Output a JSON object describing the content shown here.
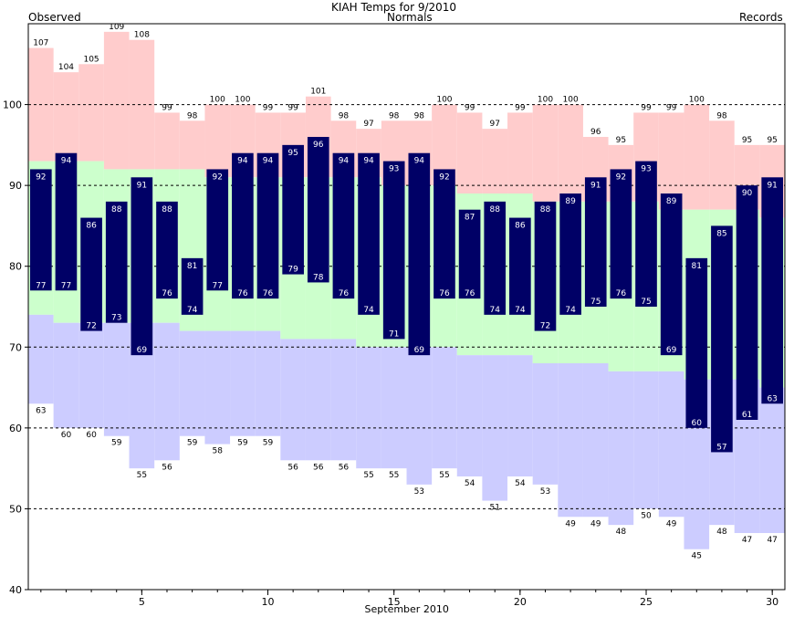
{
  "chart_data": {
    "type": "bar",
    "title": "KIAH Temps for 9/2010",
    "xlabel": "September 2010",
    "ylabel": "",
    "legend": {
      "observed": "Observed",
      "normals": "Normals",
      "records": "Records"
    },
    "ylim": [
      40,
      110
    ],
    "xlim": [
      0.5,
      30.5
    ],
    "yticks": [
      40,
      50,
      60,
      70,
      80,
      90,
      100
    ],
    "xticks": [
      5,
      10,
      15,
      20,
      25,
      30
    ],
    "grid": "horizontal dashed at 50, 60, 70, 80, 90, 100",
    "x": [
      1,
      2,
      3,
      4,
      5,
      6,
      7,
      8,
      9,
      10,
      11,
      12,
      13,
      14,
      15,
      16,
      17,
      18,
      19,
      20,
      21,
      22,
      23,
      24,
      25,
      26,
      27,
      28,
      29,
      30
    ],
    "series": [
      {
        "name": "Observed",
        "kind": "high",
        "values": [
          92,
          94,
          86,
          88,
          91,
          88,
          81,
          92,
          94,
          94,
          95,
          96,
          94,
          94,
          93,
          94,
          92,
          87,
          88,
          86,
          88,
          89,
          91,
          92,
          93,
          89,
          81,
          85,
          90,
          91
        ]
      },
      {
        "name": "Observed",
        "kind": "low",
        "values": [
          77,
          77,
          72,
          73,
          69,
          76,
          74,
          77,
          76,
          76,
          79,
          78,
          76,
          74,
          71,
          69,
          76,
          76,
          74,
          74,
          72,
          74,
          75,
          76,
          75,
          69,
          60,
          57,
          61,
          63
        ]
      },
      {
        "name": "Normals",
        "kind": "high",
        "values": [
          93,
          93,
          93,
          92,
          92,
          92,
          92,
          91,
          91,
          91,
          91,
          91,
          91,
          91,
          90,
          90,
          90,
          89,
          89,
          89,
          88,
          88,
          88,
          88,
          88,
          87,
          87,
          87,
          87,
          86
        ]
      },
      {
        "name": "Normals",
        "kind": "low",
        "values": [
          74,
          73,
          73,
          73,
          73,
          73,
          72,
          72,
          72,
          72,
          71,
          71,
          71,
          70,
          70,
          70,
          70,
          69,
          69,
          69,
          68,
          68,
          68,
          67,
          67,
          67,
          66,
          66,
          66,
          65
        ]
      },
      {
        "name": "Records",
        "kind": "high",
        "values": [
          107,
          104,
          105,
          109,
          108,
          99,
          98,
          100,
          100,
          99,
          99,
          101,
          98,
          97,
          98,
          98,
          100,
          99,
          97,
          99,
          100,
          100,
          96,
          95,
          99,
          99,
          100,
          98,
          95,
          95
        ]
      },
      {
        "name": "Records",
        "kind": "low",
        "values": [
          63,
          60,
          60,
          59,
          55,
          56,
          59,
          58,
          59,
          59,
          56,
          56,
          56,
          55,
          55,
          53,
          55,
          54,
          51,
          54,
          53,
          49,
          49,
          48,
          50,
          49,
          45,
          48,
          47,
          47
        ]
      }
    ],
    "colors": {
      "observed_bar": "#000066",
      "observed_text": "#000066",
      "normals_band": "#ccffcc",
      "normals_text": "#006600",
      "record_high_band": "#ffcccc",
      "record_low_band": "#ccccff",
      "records_text": "#cc66cc",
      "grid": "#000000"
    }
  }
}
